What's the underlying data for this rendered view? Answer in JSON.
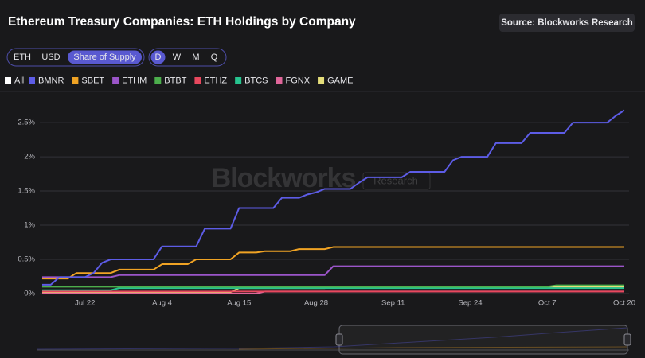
{
  "header": {
    "title": "Ethereum Treasury Companies: ETH Holdings by Company",
    "source": "Source: Blockworks Research"
  },
  "controls": {
    "units": [
      "ETH",
      "USD",
      "Share of Supply"
    ],
    "periods": [
      "D",
      "W",
      "M",
      "Q"
    ],
    "legend_all": "All"
  },
  "watermark": {
    "brand": "Blockworks",
    "sub": "Research"
  },
  "chart_data": {
    "type": "line",
    "categories": [
      null,
      null,
      null,
      null,
      null,
      "Jul 22",
      null,
      null,
      null,
      null,
      null,
      null,
      null,
      null,
      "Aug 4",
      null,
      null,
      null,
      null,
      null,
      null,
      null,
      null,
      "Aug 15",
      null,
      null,
      null,
      null,
      null,
      null,
      null,
      null,
      "Aug 28",
      null,
      null,
      null,
      null,
      null,
      null,
      null,
      null,
      "Sep 11",
      null,
      null,
      null,
      null,
      null,
      null,
      null,
      null,
      "Sep 24",
      null,
      null,
      null,
      null,
      null,
      null,
      null,
      null,
      "Oct 7",
      null,
      null,
      null,
      null,
      null,
      null,
      null,
      null,
      "Oct 20"
    ],
    "ylim": [
      0,
      2.92
    ],
    "yticks": [
      {
        "value": 0,
        "label": "0%"
      },
      {
        "value": 0.5,
        "label": "0.5%"
      },
      {
        "value": 1,
        "label": "1%"
      },
      {
        "value": 1.5,
        "label": "1.5%"
      },
      {
        "value": 2,
        "label": "2%"
      },
      {
        "value": 2.5,
        "label": "2.5%"
      }
    ],
    "grid": true,
    "series": [
      {
        "name": "BMNR",
        "color": "#5d5ce6",
        "values": [
          0.13,
          0.13,
          0.24,
          0.24,
          0.24,
          0.24,
          0.3,
          0.45,
          0.5,
          0.5,
          0.5,
          0.5,
          0.5,
          0.5,
          0.69,
          0.69,
          0.69,
          0.69,
          0.69,
          0.95,
          0.95,
          0.95,
          0.95,
          1.25,
          1.25,
          1.25,
          1.25,
          1.25,
          1.4,
          1.4,
          1.4,
          1.45,
          1.48,
          1.53,
          1.53,
          1.53,
          1.53,
          1.62,
          1.7,
          1.7,
          1.7,
          1.7,
          1.7,
          1.78,
          1.78,
          1.78,
          1.78,
          1.78,
          1.95,
          2.0,
          2.0,
          2.0,
          2.0,
          2.2,
          2.2,
          2.2,
          2.2,
          2.35,
          2.35,
          2.35,
          2.35,
          2.35,
          2.5,
          2.5,
          2.5,
          2.5,
          2.5,
          2.6,
          2.68
        ]
      },
      {
        "name": "SBET",
        "color": "#f0a324",
        "values": [
          0.22,
          0.22,
          0.22,
          0.22,
          0.3,
          0.3,
          0.3,
          0.3,
          0.3,
          0.35,
          0.35,
          0.35,
          0.35,
          0.35,
          0.43,
          0.43,
          0.43,
          0.43,
          0.5,
          0.5,
          0.5,
          0.5,
          0.5,
          0.6,
          0.6,
          0.6,
          0.62,
          0.62,
          0.62,
          0.62,
          0.65,
          0.65,
          0.65,
          0.65,
          0.68,
          0.68,
          0.68,
          0.68,
          0.68,
          0.68,
          0.68,
          0.68,
          0.68,
          0.68,
          0.68,
          0.68,
          0.68,
          0.68,
          0.68,
          0.68,
          0.68,
          0.68,
          0.68,
          0.68,
          0.68,
          0.68,
          0.68,
          0.68,
          0.68,
          0.68,
          0.68,
          0.68,
          0.68,
          0.68,
          0.68,
          0.68,
          0.68,
          0.68,
          0.68
        ]
      },
      {
        "name": "ETHM",
        "color": "#9b55c9",
        "values": [
          0.24,
          0.24,
          0.24,
          0.24,
          0.24,
          0.24,
          0.24,
          0.24,
          0.24,
          0.27,
          0.27,
          0.27,
          0.27,
          0.27,
          0.27,
          0.27,
          0.27,
          0.27,
          0.27,
          0.27,
          0.27,
          0.27,
          0.27,
          0.27,
          0.27,
          0.27,
          0.27,
          0.27,
          0.27,
          0.27,
          0.27,
          0.27,
          0.27,
          0.27,
          0.4,
          0.4,
          0.4,
          0.4,
          0.4,
          0.4,
          0.4,
          0.4,
          0.4,
          0.4,
          0.4,
          0.4,
          0.4,
          0.4,
          0.4,
          0.4,
          0.4,
          0.4,
          0.4,
          0.4,
          0.4,
          0.4,
          0.4,
          0.4,
          0.4,
          0.4,
          0.4,
          0.4,
          0.4,
          0.4,
          0.4,
          0.4,
          0.4,
          0.4,
          0.4
        ]
      },
      {
        "name": "BTBT",
        "color": "#4cae4c",
        "values": [
          0.1,
          0.1,
          0.1,
          0.1,
          0.1,
          0.1,
          0.1,
          0.1,
          0.1,
          0.1,
          0.1,
          0.1,
          0.1,
          0.1,
          0.1,
          0.1,
          0.1,
          0.1,
          0.1,
          0.1,
          0.1,
          0.1,
          0.1,
          0.1,
          0.1,
          0.1,
          0.1,
          0.1,
          0.1,
          0.1,
          0.1,
          0.1,
          0.1,
          0.1,
          0.1,
          0.1,
          0.1,
          0.1,
          0.1,
          0.1,
          0.1,
          0.1,
          0.1,
          0.1,
          0.1,
          0.1,
          0.1,
          0.1,
          0.1,
          0.1,
          0.1,
          0.1,
          0.1,
          0.1,
          0.1,
          0.1,
          0.1,
          0.1,
          0.1,
          0.1,
          0.12,
          0.12,
          0.12,
          0.12,
          0.12,
          0.12,
          0.12,
          0.12,
          0.12
        ]
      },
      {
        "name": "ETHZ",
        "color": "#e8485e",
        "values": [
          0.03,
          0.03,
          0.03,
          0.03,
          0.03,
          0.03,
          0.03,
          0.03,
          0.03,
          0.03,
          0.03,
          0.03,
          0.03,
          0.03,
          0.03,
          0.03,
          0.03,
          0.03,
          0.03,
          0.03,
          0.03,
          0.03,
          0.03,
          0.03,
          0.03,
          0.03,
          0.03,
          0.03,
          0.03,
          0.03,
          0.03,
          0.03,
          0.03,
          0.03,
          0.03,
          0.03,
          0.03,
          0.03,
          0.03,
          0.03,
          0.03,
          0.03,
          0.03,
          0.03,
          0.03,
          0.03,
          0.03,
          0.03,
          0.03,
          0.03,
          0.03,
          0.03,
          0.03,
          0.03,
          0.03,
          0.03,
          0.03,
          0.03,
          0.03,
          0.03,
          0.03,
          0.03,
          0.03,
          0.03,
          0.03,
          0.03,
          0.03,
          0.03,
          0.03
        ]
      },
      {
        "name": "BTCS",
        "color": "#27c48f",
        "values": [
          0.05,
          0.05,
          0.05,
          0.05,
          0.05,
          0.05,
          0.05,
          0.05,
          0.05,
          0.08,
          0.08,
          0.08,
          0.08,
          0.08,
          0.08,
          0.08,
          0.08,
          0.08,
          0.08,
          0.08,
          0.08,
          0.08,
          0.08,
          0.08,
          0.08,
          0.08,
          0.08,
          0.08,
          0.08,
          0.08,
          0.08,
          0.08,
          0.08,
          0.08,
          0.08,
          0.08,
          0.08,
          0.08,
          0.08,
          0.08,
          0.08,
          0.08,
          0.08,
          0.08,
          0.08,
          0.08,
          0.08,
          0.08,
          0.08,
          0.08,
          0.08,
          0.08,
          0.08,
          0.08,
          0.08,
          0.08,
          0.08,
          0.08,
          0.08,
          0.08,
          0.08,
          0.08,
          0.08,
          0.08,
          0.08,
          0.08,
          0.08,
          0.08,
          0.08
        ]
      },
      {
        "name": "FGNX",
        "color": "#e0669a",
        "values": [
          0,
          0,
          0,
          0,
          0,
          0,
          0,
          0,
          0,
          0,
          0,
          0,
          0,
          0,
          0,
          0,
          0,
          0,
          0,
          0,
          0,
          0,
          0,
          0,
          0,
          0,
          0.03,
          0.03,
          0.03,
          0.03,
          0.03,
          0.03,
          0.03,
          0.03,
          0.03,
          0.03,
          0.03,
          0.03,
          0.03,
          0.03,
          0.03,
          0.03,
          0.03,
          0.03,
          0.03,
          0.03,
          0.03,
          0.03,
          0.03,
          0.03,
          0.03,
          0.03,
          0.03,
          0.03,
          0.03,
          0.03,
          0.03,
          0.03,
          0.03,
          0.03,
          0.03,
          0.03,
          0.03,
          0.03,
          0.03,
          0.03,
          0.03,
          0.03,
          0.03
        ]
      },
      {
        "name": "GAME",
        "color": "#e4dd7a",
        "values": [
          0.02,
          0.02,
          0.02,
          0.02,
          0.02,
          0.02,
          0.02,
          0.02,
          0.02,
          0.02,
          0.02,
          0.02,
          0.02,
          0.02,
          0.02,
          0.02,
          0.02,
          0.02,
          0.02,
          0.02,
          0.02,
          0.02,
          0.02,
          0.08,
          0.08,
          0.08,
          0.08,
          0.08,
          0.08,
          0.08,
          0.08,
          0.08,
          0.08,
          0.08,
          0.1,
          0.1,
          0.1,
          0.1,
          0.1,
          0.1,
          0.1,
          0.1,
          0.1,
          0.1,
          0.1,
          0.1,
          0.1,
          0.1,
          0.1,
          0.1,
          0.1,
          0.1,
          0.1,
          0.1,
          0.1,
          0.1,
          0.1,
          0.1,
          0.1,
          0.1,
          0.1,
          0.1,
          0.1,
          0.1,
          0.1,
          0.1,
          0.1,
          0.1,
          0.1
        ]
      }
    ]
  }
}
